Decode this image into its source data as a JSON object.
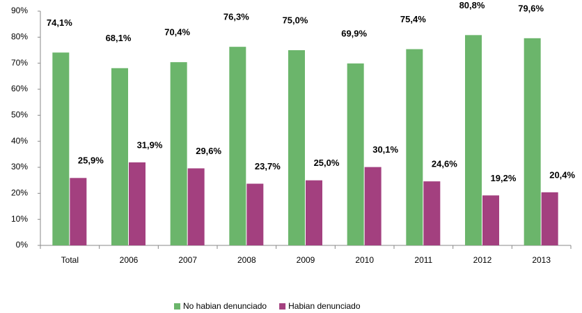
{
  "chart_data": {
    "type": "bar",
    "categories": [
      "Total",
      "2006",
      "2007",
      "2008",
      "2009",
      "2010",
      "2011",
      "2012",
      "2013"
    ],
    "series": [
      {
        "name": "No habian denunciado",
        "color": "#6bb56b",
        "values": [
          74.1,
          68.1,
          70.4,
          76.3,
          75.0,
          69.9,
          75.4,
          80.8,
          79.6
        ],
        "value_labels": [
          "74,1%",
          "68,1%",
          "70,4%",
          "76,3%",
          "75,0%",
          "69,9%",
          "75,4%",
          "80,8%",
          "79,6%"
        ]
      },
      {
        "name": "Habian denunciado",
        "color": "#a3407f",
        "values": [
          25.9,
          31.9,
          29.6,
          23.7,
          25.0,
          30.1,
          24.6,
          19.2,
          20.4
        ],
        "value_labels": [
          "25,9%",
          "31,9%",
          "29,6%",
          "23,7%",
          "25,0%",
          "30,1%",
          "24,6%",
          "19,2%",
          "20,4%"
        ]
      }
    ],
    "ylim": [
      0,
      90
    ],
    "yticks": [
      {
        "value": 0,
        "label": "0%"
      },
      {
        "value": 10,
        "label": "10%"
      },
      {
        "value": 20,
        "label": "20%"
      },
      {
        "value": 30,
        "label": "30%"
      },
      {
        "value": 40,
        "label": "40%"
      },
      {
        "value": 50,
        "label": "50%"
      },
      {
        "value": 60,
        "label": "60%"
      },
      {
        "value": 70,
        "label": "70%"
      },
      {
        "value": 80,
        "label": "80%"
      },
      {
        "value": 90,
        "label": "90%"
      }
    ],
    "grid": false,
    "legend": "bottom"
  }
}
